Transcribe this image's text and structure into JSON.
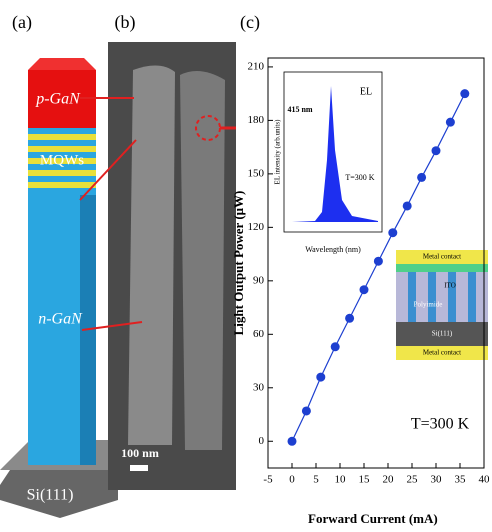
{
  "panel_a": {
    "label": "(a)",
    "top_layer": "p-GaN",
    "middle_layer": "MQWs",
    "bottom_layer": "n-GaN",
    "substrate": "Si(111)"
  },
  "panel_b": {
    "label": "(b)",
    "scale_bar": "100 nm"
  },
  "chart_data": {
    "type": "line",
    "panel_label": "(c)",
    "x_label": "Forward Current (mA)",
    "y_label": "Light Output Power (μW)",
    "annotation": "T=300 K",
    "x": [
      0,
      3,
      6,
      9,
      12,
      15,
      18,
      21,
      24,
      27,
      30,
      33,
      36
    ],
    "series": [
      {
        "color": "#1d3fd0",
        "values": [
          0,
          17,
          36,
          53,
          69,
          85,
          101,
          117,
          132,
          148,
          163,
          179,
          195
        ]
      }
    ],
    "xlim": [
      -5,
      40
    ],
    "xticks": [
      -5,
      0,
      5,
      10,
      15,
      20,
      25,
      30,
      35,
      40
    ],
    "ylim": [
      -15,
      215
    ],
    "yticks": [
      0,
      30,
      60,
      90,
      120,
      150,
      180,
      210
    ],
    "inset": {
      "label": "EL",
      "peak": "415 nm",
      "temperature": "T=300 K",
      "x_label": "Wavelength (nm)",
      "y_label": "EL intensity (arb.units)"
    },
    "device_inset": {
      "top": "Metal contact",
      "ito": "ITO",
      "fill": "Polyimide",
      "substrate": "Si(111)",
      "bottom": "Metal contact"
    }
  }
}
